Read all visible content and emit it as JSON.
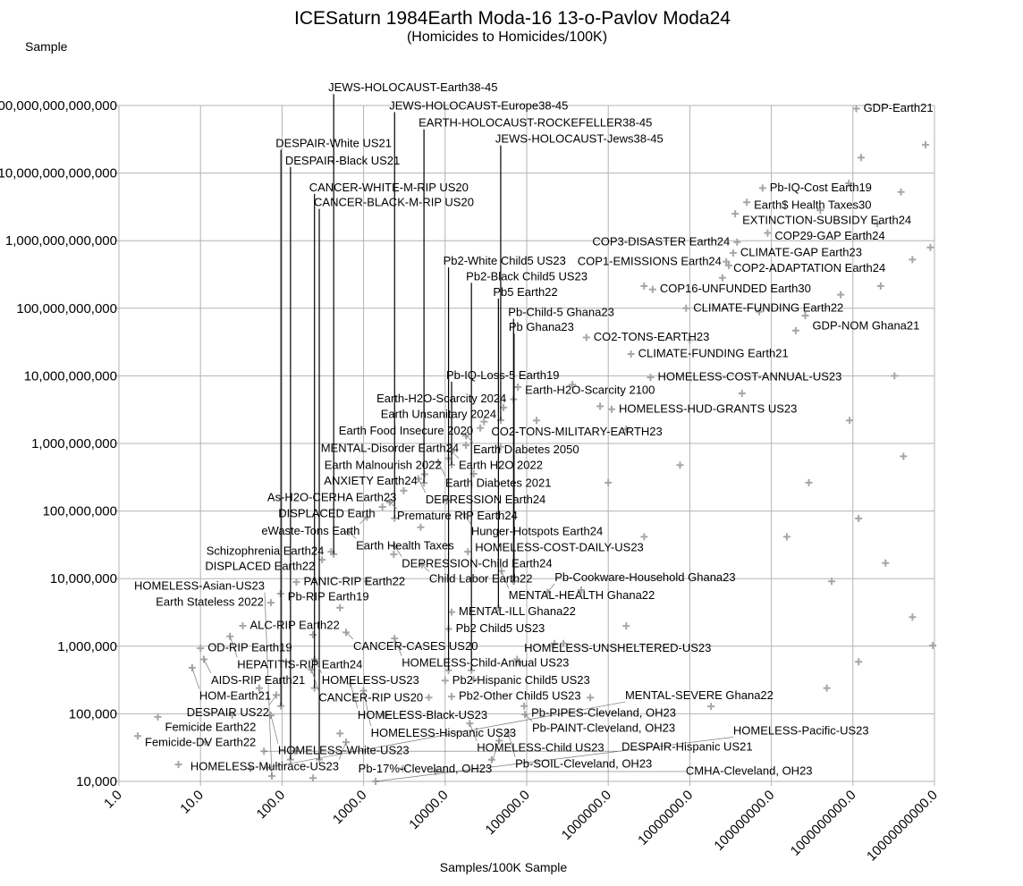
{
  "chart_data": {
    "type": "scatter",
    "title": "ICESaturn 1984Earth Moda-16 13-o-Pavlov Moda24",
    "subtitle": "(Homicides to Homicides/100K)",
    "xlabel": "Samples/100K Sample",
    "ylabel": "Sample",
    "xscale": "log",
    "yscale": "log",
    "xlim": [
      1,
      10000000000
    ],
    "ylim": [
      10000,
      100000000000000
    ],
    "grid": true,
    "marker": "plus",
    "colors": {
      "marker": "#a6a6a6",
      "grid": "#b3b3b3",
      "label": "#000000",
      "leader": "#000000"
    },
    "x_ticks": [
      "1.0",
      "10.0",
      "100.0",
      "1000.0",
      "10000.0",
      "100000.0",
      "1000000.0",
      "10000000.0",
      "100000000.0",
      "1000000000.0",
      "10000000000.0"
    ],
    "y_ticks": [
      "10,000",
      "100,000",
      "1,000,000",
      "10,000,000",
      "100,000,000",
      "1,000,000,000",
      "10,000,000,000",
      "100,000,000,000",
      "1,000,000,000,000",
      "10,000,000,000,000",
      "100,000,000,000,000"
    ],
    "leader_points": [
      {
        "label": "JEWS-HOLOCAUST-Earth38-45",
        "x": 430,
        "y": 23000000.0,
        "label_y": 180000000000000.0
      },
      {
        "label": "JEWS-HOLOCAUST-Europe38-45",
        "x": 2400,
        "y": 78000000.0,
        "label_y": 110000000000000.0
      },
      {
        "label": "EARTH-HOLOCAUST-ROCKEFELLER38-45",
        "x": 5500,
        "y": 260000000.0,
        "label_y": 69000000000000.0
      },
      {
        "label": "JEWS-HOLOCAUST-Jews38-45",
        "x": 48000,
        "y": 2200000000.0,
        "label_y": 40000000000000.0
      },
      {
        "label": "DESPAIR-White US21",
        "x": 97,
        "y": 130000.0,
        "label_y": 27000000000000.0
      },
      {
        "label": "DESPAIR-Black US21",
        "x": 127,
        "y": 21000.0,
        "label_y": 15000000000000.0
      },
      {
        "label": "CANCER-WHITE-M-RIP US20",
        "x": 250,
        "y": 240000.0,
        "label_y": 6000000000000.0
      },
      {
        "label": "CANCER-BLACK-M-RIP US20",
        "x": 286,
        "y": 21000.0,
        "label_y": 3600000000000.0
      },
      {
        "label": "Pb2-White Child5 US23",
        "x": 11000,
        "y": 440000.0,
        "label_y": 490000000000.0
      },
      {
        "label": "Pb2-Black Child5 US23",
        "x": 21000,
        "y": 440000.0,
        "label_y": 290000000000.0
      },
      {
        "label": "Pb5 Earth22",
        "x": 45000,
        "y": 3700000.0,
        "label_y": 170000000000.0
      },
      {
        "label": "Pb-Child-5 Ghana23",
        "x": 69000,
        "y": 9100000.0,
        "label_y": 85000000000.0
      },
      {
        "label": "Pb Ghana23",
        "x": 70000,
        "y": 9100000.0,
        "label_y": 58000000000.0
      },
      {
        "label": "Pb-IQ-Loss-5 Earth19",
        "x": 12000,
        "y": 480000000.0,
        "label_y": 10000000000.0
      }
    ],
    "labeled_points": [
      {
        "label": "GDP-Earth21",
        "x": 1100000000.0,
        "y": 90000000000000.0
      },
      {
        "label": "Pb-IQ-Cost Earth19",
        "x": 78000000.0,
        "y": 6000000000000.0
      },
      {
        "label": "Earth$ Health Taxes30",
        "x": 50000000.0,
        "y": 3700000000000.0
      },
      {
        "label": "EXTINCTION-SUBSIDY Earth24",
        "x": 36000000.0,
        "y": 2500000000000.0
      },
      {
        "label": "COP29-GAP Earth24",
        "x": 90000000.0,
        "y": 1300000000000.0
      },
      {
        "label": "COP3-DISASTER Earth24",
        "x": 38000000.0,
        "y": 950000000000.0
      },
      {
        "label": "CLIMATE-GAP Earth23",
        "x": 34000000.0,
        "y": 660000000000.0
      },
      {
        "label": "COP2-ADAPTATION Earth24",
        "x": 28000000.0,
        "y": 490000000000.0
      },
      {
        "label": "COP1-EMISSIONS Earth24",
        "x": 30000000.0,
        "y": 430000000000.0
      },
      {
        "label": "COP16-UNFUNDED Earth30",
        "x": 3500000.0,
        "y": 190000000000.0
      },
      {
        "label": "CLIMATE-FUNDING Earth22",
        "x": 9000000.0,
        "y": 100000000000.0
      },
      {
        "label": "GDP-NOM Ghana21",
        "x": 260000000.0,
        "y": 78000000000.0
      },
      {
        "label": "CO2-TONS-EARTH23",
        "x": 540000.0,
        "y": 37000000000.0
      },
      {
        "label": "CLIMATE-FUNDING Earth21",
        "x": 1900000.0,
        "y": 21000000000.0
      },
      {
        "label": "HOMELESS-COST-ANNUAL-US23",
        "x": 3300000.0,
        "y": 9500000000.0
      },
      {
        "label": "HOMELESS-HUD-GRANTS US23",
        "x": 1100000.0,
        "y": 3200000000.0
      },
      {
        "label": "Earth-H2O-Scarcity 2100",
        "x": 78000.0,
        "y": 6800000000.0
      },
      {
        "label": "Earth-H2O-Scarcity 2024",
        "x": 69000.0,
        "y": 4500000000.0
      },
      {
        "label": "Earth Unsanitary 2024",
        "x": 52000.0,
        "y": 3400000000.0
      },
      {
        "label": "CO2-TONS-MILITARY-EARTH23",
        "x": 30000.0,
        "y": 2100000000.0
      },
      {
        "label": "Earth Food Insecure 2020",
        "x": 27000.0,
        "y": 1700000000.0
      },
      {
        "label": "Earth Diabetes 2050",
        "x": 18000.0,
        "y": 1300000000.0
      },
      {
        "label": "MENTAL-Disorder Earth24",
        "x": 18000.0,
        "y": 940000000.0
      },
      {
        "label": "Earth H2O 2022",
        "x": 12000.0,
        "y": 760000000.0
      },
      {
        "label": "Earth Malnourish 2022",
        "x": 11000.0,
        "y": 600000000.0
      },
      {
        "label": "Earth Diabetes 2021",
        "x": 8200,
        "y": 530000000.0
      },
      {
        "label": "ANXIETY Earth24",
        "x": 5600,
        "y": 350000000.0
      },
      {
        "label": "DEPRESSION Earth24",
        "x": 4700,
        "y": 300000000.0
      },
      {
        "label": "As-H2O-CERHA Earth23",
        "x": 3100,
        "y": 200000000.0
      },
      {
        "label": "Premature RIP Earth24",
        "x": 2100,
        "y": 135000000.0
      },
      {
        "label": "DISPLACED Earth",
        "x": 1700,
        "y": 115000000.0
      },
      {
        "label": "Hunger-Hotspots Earth24",
        "x": 17000.0,
        "y": 90000000.0
      },
      {
        "label": "eWaste-Tons Earth",
        "x": 1100,
        "y": 81000000.0
      },
      {
        "label": "Earth Health Taxes",
        "x": 660,
        "y": 49000000.0
      },
      {
        "label": "DEPRESSION-Child Earth24",
        "x": 2400,
        "y": 30000000.0
      },
      {
        "label": "HOMELESS-COST-DAILY-US23",
        "x": 19000.0,
        "y": 25000000.0
      },
      {
        "label": "Schizophrenia Earth24",
        "x": 400,
        "y": 25000000.0
      },
      {
        "label": "DISPLACED Earth22",
        "x": 310,
        "y": 19000000.0
      },
      {
        "label": "Child Labor Earth22",
        "x": 5200,
        "y": 16000000.0
      },
      {
        "label": "MENTAL-HEALTH Ghana22",
        "x": 49000.0,
        "y": 13000000.0
      },
      {
        "label": "PANIC-RIP Earth22",
        "x": 150,
        "y": 8900000.0
      },
      {
        "label": "Pb-Cookware-Household Ghana23",
        "x": 180000.0,
        "y": 6300000.0
      },
      {
        "label": "Pb-RIP Earth19",
        "x": 96,
        "y": 6000000.0
      },
      {
        "label": "Earth Stateless 2022",
        "x": 73,
        "y": 4400000.0
      },
      {
        "label": "MENTAL-ILL Ghana22",
        "x": 12000.0,
        "y": 3200000.0
      },
      {
        "label": "ALC-RIP Earth22",
        "x": 33,
        "y": 2000000.0
      },
      {
        "label": "Pb2 Child5 US23",
        "x": 11000.0,
        "y": 1800000.0
      },
      {
        "label": "CANCER-CASES US20",
        "x": 610,
        "y": 1600000.0
      },
      {
        "label": "HEPATITIS-RIP Earth24",
        "x": 23,
        "y": 1400000.0
      },
      {
        "label": "HOMELESS-Child-Annual US23",
        "x": 2400,
        "y": 1300000.0
      },
      {
        "label": "OD-RIP Earth19",
        "x": 10,
        "y": 930000.0
      },
      {
        "label": "HOMELESS-UNSHELTERED-US23",
        "x": 76000.0,
        "y": 640000.0
      },
      {
        "label": "HOMELESS-US23",
        "x": 250,
        "y": 640000.0
      },
      {
        "label": "AIDS-RIP Earth21",
        "x": 11,
        "y": 640000.0
      },
      {
        "label": "HOM-Earth21",
        "x": 7.9,
        "y": 480000.0
      },
      {
        "label": "CANCER-RIP US20",
        "x": 230,
        "y": 450000.0
      },
      {
        "label": "Pb2-Hispanic Child5 US23",
        "x": 10000.0,
        "y": 310000.0
      },
      {
        "label": "HOMELESS-Black-US23",
        "x": 690,
        "y": 280000.0
      },
      {
        "label": "HOMELESS-Hispanic US23",
        "x": 1000,
        "y": 220000.0
      },
      {
        "label": "DESPAIR US22",
        "x": 85,
        "y": 190000.0
      },
      {
        "label": "Pb2-Other Child5 US23",
        "x": 12000.0,
        "y": 180000.0
      },
      {
        "label": "Pb-PIPES-Cleveland, OH23",
        "x": 93000.0,
        "y": 130000.0
      },
      {
        "label": "Pb-PAINT-Cleveland, OH23",
        "x": 95000.0,
        "y": 98000.0
      },
      {
        "label": "Femicide Earth22",
        "x": 3.0,
        "y": 90000.0
      },
      {
        "label": "HOMELESS-White-US23",
        "x": 73,
        "y": 95000.0
      },
      {
        "label": "HOMELESS-Child US23",
        "x": 20000.0,
        "y": 72000.0
      },
      {
        "label": "Pb-SOIL-Cleveland, OH23",
        "x": 59000.0,
        "y": 53000.0
      },
      {
        "label": "Femicide-DV Earth22",
        "x": 1.7,
        "y": 47000.0
      },
      {
        "label": "Pb-17%-Cleveland, OH23",
        "x": 46000.0,
        "y": 40000.0
      },
      {
        "label": "HOMELESS-Multirace-US23",
        "x": 610,
        "y": 38000.0
      },
      {
        "label": "DESPAIR-Hispanic US21",
        "x": 60,
        "y": 28000.0
      },
      {
        "label": "CMHA-Cleveland, OH23",
        "x": 7600,
        "y": 14000.0
      },
      {
        "label": "MENTAL-SEVERE Ghana22",
        "x": 66,
        "y": 16000.0
      },
      {
        "label": "HOMELESS-Asian-US23",
        "x": 75,
        "y": 12000.0
      },
      {
        "label": "HOMELESS-Pacific-US23",
        "x": 1400,
        "y": 10000.0
      }
    ],
    "unlabeled_points_log10": [
      [
        9.89,
        13.42
      ],
      [
        9.1,
        13.23
      ],
      [
        9.59,
        12.72
      ],
      [
        9.95,
        11.9
      ],
      [
        9.73,
        11.72
      ],
      [
        9.34,
        11.33
      ],
      [
        8.85,
        11.2
      ],
      [
        8.3,
        10.67
      ],
      [
        9.51,
        10.0
      ],
      [
        8.96,
        9.34
      ],
      [
        9.62,
        8.81
      ],
      [
        8.46,
        8.42
      ],
      [
        9.07,
        7.89
      ],
      [
        8.19,
        7.62
      ],
      [
        9.4,
        7.23
      ],
      [
        8.74,
        6.96
      ],
      [
        9.73,
        6.43
      ],
      [
        9.07,
        5.77
      ],
      [
        8.68,
        5.38
      ],
      [
        9.98,
        6.01
      ],
      [
        7.26,
        5.11
      ],
      [
        6.44,
        11.33
      ],
      [
        7.0,
        10.53
      ],
      [
        7.64,
        9.74
      ],
      [
        6.22,
        9.21
      ],
      [
        6.88,
        8.68
      ],
      [
        6.0,
        8.42
      ],
      [
        6.44,
        7.62
      ],
      [
        5.67,
        6.83
      ],
      [
        6.22,
        6.3
      ],
      [
        5.34,
        6.04
      ],
      [
        5.78,
        5.24
      ],
      [
        0.73,
        4.25
      ],
      [
        1.06,
        4.58
      ],
      [
        1.39,
        4.98
      ],
      [
        1.72,
        5.38
      ],
      [
        2.05,
        5.77
      ],
      [
        2.38,
        6.17
      ],
      [
        2.71,
        6.57
      ],
      [
        3.04,
        6.96
      ],
      [
        3.37,
        7.36
      ],
      [
        3.7,
        7.76
      ],
      [
        4.02,
        8.15
      ],
      [
        4.35,
        8.55
      ],
      [
        4.68,
        8.95
      ],
      [
        5.12,
        9.34
      ],
      [
        5.56,
        9.87
      ],
      [
        1.61,
        4.19
      ],
      [
        2.16,
        4.45
      ],
      [
        2.71,
        4.71
      ],
      [
        3.26,
        4.98
      ],
      [
        3.8,
        5.24
      ],
      [
        4.35,
        5.51
      ],
      [
        4.9,
        5.77
      ],
      [
        5.45,
        6.04
      ],
      [
        2.38,
        4.05
      ],
      [
        3.48,
        4.19
      ],
      [
        4.57,
        4.32
      ],
      [
        8.6,
        12.45
      ],
      [
        8.95,
        12.85
      ],
      [
        9.3,
        12.25
      ],
      [
        7.4,
        11.45
      ],
      [
        7.85,
        10.95
      ],
      [
        5.9,
        9.55
      ]
    ]
  }
}
